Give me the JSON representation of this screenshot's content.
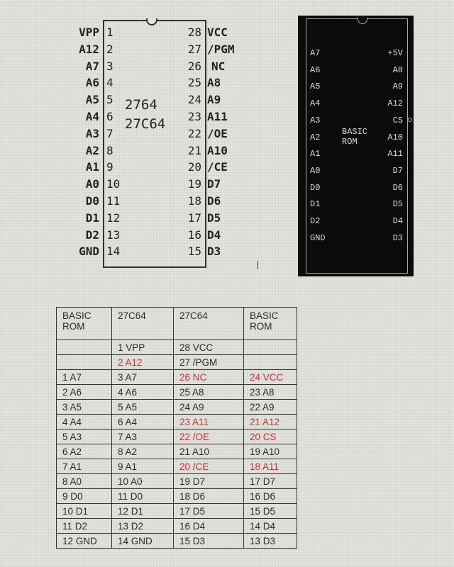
{
  "chip_27c64": {
    "names": [
      "2764",
      "27C64"
    ],
    "left_pins": [
      {
        "num": "1",
        "label": "VPP"
      },
      {
        "num": "2",
        "label": "A12"
      },
      {
        "num": "3",
        "label": "A7"
      },
      {
        "num": "4",
        "label": "A6"
      },
      {
        "num": "5",
        "label": "A5"
      },
      {
        "num": "6",
        "label": "A4"
      },
      {
        "num": "7",
        "label": "A3"
      },
      {
        "num": "8",
        "label": "A2"
      },
      {
        "num": "9",
        "label": "A1"
      },
      {
        "num": "10",
        "label": "A0"
      },
      {
        "num": "11",
        "label": "D0"
      },
      {
        "num": "12",
        "label": "D1"
      },
      {
        "num": "13",
        "label": "D2"
      },
      {
        "num": "14",
        "label": "GND"
      }
    ],
    "right_pins": [
      {
        "num": "28",
        "label": "VCC"
      },
      {
        "num": "27",
        "label": "/PGM"
      },
      {
        "num": "26",
        "label": "NC"
      },
      {
        "num": "25",
        "label": "A8"
      },
      {
        "num": "24",
        "label": "A9"
      },
      {
        "num": "23",
        "label": "A11"
      },
      {
        "num": "22",
        "label": "/OE"
      },
      {
        "num": "21",
        "label": "A10"
      },
      {
        "num": "20",
        "label": "/CE"
      },
      {
        "num": "19",
        "label": "D7"
      },
      {
        "num": "18",
        "label": "D6"
      },
      {
        "num": "17",
        "label": "D5"
      },
      {
        "num": "16",
        "label": "D4"
      },
      {
        "num": "15",
        "label": "D3"
      }
    ]
  },
  "chip_basic_rom": {
    "name_line1": "BASIC",
    "name_line2": "ROM",
    "left_pins": [
      "A7",
      "A6",
      "A5",
      "A4",
      "A3",
      "A2",
      "A1",
      "A0",
      "D0",
      "D1",
      "D2",
      "GND"
    ],
    "right_pins": [
      "+5V",
      "A8",
      "A9",
      "A12",
      "CS",
      "A10",
      "A11",
      "D7",
      "D6",
      "D5",
      "D4",
      "D3"
    ]
  },
  "table": {
    "headers": [
      [
        "BASIC",
        "ROM"
      ],
      [
        "27C64",
        ""
      ],
      [
        "27C64",
        ""
      ],
      [
        "BASIC",
        "ROM"
      ]
    ],
    "highlight_color": "#c4323a",
    "rows": [
      [
        {
          "t": ""
        },
        {
          "t": "1 VPP"
        },
        {
          "t": "28 VCC"
        },
        {
          "t": ""
        }
      ],
      [
        {
          "t": ""
        },
        {
          "t": "2 A12",
          "red": true
        },
        {
          "t": "27 /PGM"
        },
        {
          "t": ""
        }
      ],
      [
        {
          "t": "1 A7"
        },
        {
          "t": "3 A7"
        },
        {
          "t": "26 NC",
          "red": true
        },
        {
          "t": "24 VCC",
          "red": true
        }
      ],
      [
        {
          "t": "2 A6"
        },
        {
          "t": "4 A6"
        },
        {
          "t": "25 A8"
        },
        {
          "t": "23 A8"
        }
      ],
      [
        {
          "t": "3 A5"
        },
        {
          "t": "5 A5"
        },
        {
          "t": "24 A9"
        },
        {
          "t": "22 A9"
        }
      ],
      [
        {
          "t": "4 A4"
        },
        {
          "t": "6 A4"
        },
        {
          "t": "23 A11",
          "red": true
        },
        {
          "t": "21 A12",
          "red": true
        }
      ],
      [
        {
          "t": "5 A3"
        },
        {
          "t": "7 A3"
        },
        {
          "t": "22 /OE",
          "red": true
        },
        {
          "t": "20 CS",
          "red": true
        }
      ],
      [
        {
          "t": "6 A2"
        },
        {
          "t": "8 A2"
        },
        {
          "t": "21 A10"
        },
        {
          "t": "19 A10"
        }
      ],
      [
        {
          "t": "7 A1"
        },
        {
          "t": "9 A1"
        },
        {
          "t": "20 /CE",
          "red": true
        },
        {
          "t": "18 A11",
          "red": true
        }
      ],
      [
        {
          "t": "8 A0"
        },
        {
          "t": "10 A0"
        },
        {
          "t": "19 D7"
        },
        {
          "t": "17 D7"
        }
      ],
      [
        {
          "t": "9 D0"
        },
        {
          "t": "11 D0"
        },
        {
          "t": "18 D6"
        },
        {
          "t": "16 D6"
        }
      ],
      [
        {
          "t": "10 D1"
        },
        {
          "t": "12 D1"
        },
        {
          "t": "17 D5"
        },
        {
          "t": "15 D5"
        }
      ],
      [
        {
          "t": "11 D2"
        },
        {
          "t": "13 D2"
        },
        {
          "t": "16 D4"
        },
        {
          "t": "14 D4"
        }
      ],
      [
        {
          "t": "12 GND"
        },
        {
          "t": "14 GND"
        },
        {
          "t": "15 D3"
        },
        {
          "t": "13 D3"
        }
      ]
    ]
  }
}
